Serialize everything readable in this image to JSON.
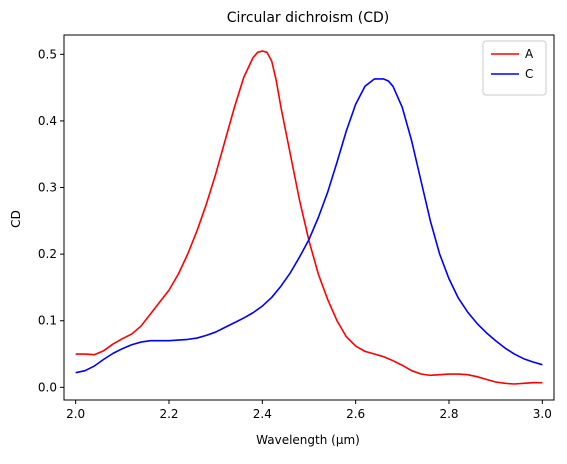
{
  "chart_data": {
    "type": "line",
    "title": "Circular dichroism (CD)",
    "xlabel": "Wavelength (μm)",
    "ylabel": "CD",
    "xlim": [
      1.975,
      3.025
    ],
    "ylim": [
      -0.019,
      0.529
    ],
    "xticks": [
      2.0,
      2.2,
      2.4,
      2.6,
      2.8,
      3.0
    ],
    "xtick_labels": [
      "2.0",
      "2.2",
      "2.4",
      "2.6",
      "2.8",
      "3.0"
    ],
    "yticks": [
      0.0,
      0.1,
      0.2,
      0.3,
      0.4,
      0.5
    ],
    "ytick_labels": [
      "0.0",
      "0.1",
      "0.2",
      "0.3",
      "0.4",
      "0.5"
    ],
    "grid": false,
    "legend": "top-right",
    "series": [
      {
        "name": "A",
        "color": "#ff0000",
        "x": [
          2.0,
          2.02,
          2.04,
          2.06,
          2.08,
          2.1,
          2.12,
          2.14,
          2.16,
          2.18,
          2.2,
          2.22,
          2.24,
          2.26,
          2.28,
          2.3,
          2.32,
          2.34,
          2.36,
          2.38,
          2.39,
          2.4,
          2.41,
          2.42,
          2.43,
          2.44,
          2.46,
          2.48,
          2.5,
          2.52,
          2.54,
          2.56,
          2.58,
          2.6,
          2.62,
          2.64,
          2.66,
          2.68,
          2.7,
          2.72,
          2.74,
          2.76,
          2.78,
          2.8,
          2.82,
          2.84,
          2.86,
          2.88,
          2.9,
          2.92,
          2.94,
          2.96,
          2.98,
          3.0
        ],
        "y": [
          0.05,
          0.05,
          0.049,
          0.055,
          0.065,
          0.073,
          0.08,
          0.092,
          0.11,
          0.128,
          0.146,
          0.17,
          0.2,
          0.235,
          0.275,
          0.32,
          0.37,
          0.42,
          0.465,
          0.495,
          0.503,
          0.505,
          0.503,
          0.49,
          0.46,
          0.42,
          0.35,
          0.28,
          0.22,
          0.17,
          0.132,
          0.1,
          0.076,
          0.062,
          0.054,
          0.05,
          0.046,
          0.04,
          0.033,
          0.025,
          0.02,
          0.018,
          0.019,
          0.02,
          0.02,
          0.019,
          0.016,
          0.012,
          0.008,
          0.006,
          0.005,
          0.006,
          0.007,
          0.007
        ]
      },
      {
        "name": "C",
        "color": "#0000ff",
        "x": [
          2.0,
          2.02,
          2.04,
          2.06,
          2.08,
          2.1,
          2.12,
          2.14,
          2.16,
          2.18,
          2.2,
          2.22,
          2.24,
          2.26,
          2.28,
          2.3,
          2.32,
          2.34,
          2.36,
          2.38,
          2.4,
          2.42,
          2.44,
          2.46,
          2.48,
          2.5,
          2.52,
          2.54,
          2.56,
          2.58,
          2.6,
          2.62,
          2.64,
          2.66,
          2.67,
          2.68,
          2.7,
          2.72,
          2.74,
          2.76,
          2.78,
          2.8,
          2.82,
          2.84,
          2.86,
          2.88,
          2.9,
          2.92,
          2.94,
          2.96,
          2.98,
          3.0
        ],
        "y": [
          0.022,
          0.025,
          0.032,
          0.042,
          0.051,
          0.058,
          0.064,
          0.068,
          0.07,
          0.07,
          0.07,
          0.071,
          0.072,
          0.074,
          0.078,
          0.083,
          0.09,
          0.097,
          0.104,
          0.112,
          0.122,
          0.135,
          0.152,
          0.172,
          0.196,
          0.222,
          0.255,
          0.293,
          0.338,
          0.385,
          0.425,
          0.452,
          0.463,
          0.463,
          0.46,
          0.452,
          0.42,
          0.37,
          0.31,
          0.25,
          0.2,
          0.163,
          0.134,
          0.113,
          0.096,
          0.082,
          0.07,
          0.059,
          0.05,
          0.043,
          0.038,
          0.034
        ]
      }
    ]
  }
}
